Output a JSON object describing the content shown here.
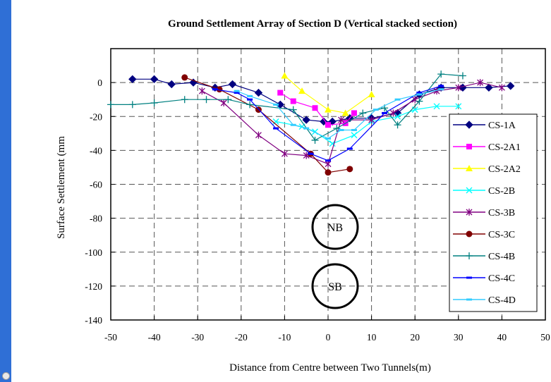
{
  "chart_data": {
    "type": "line",
    "title": "Ground Settlement Array of Section D (Vertical stacked section)",
    "xlabel": "Distance from Centre between Two Tunnels(m)",
    "ylabel": "Surface Settlement (mm",
    "xlim": [
      -50,
      50
    ],
    "ylim": [
      -140,
      20
    ],
    "xticks": [
      "-50",
      "-40",
      "-30",
      "-20",
      "-10",
      "0",
      "10",
      "20",
      "30",
      "40",
      "50"
    ],
    "yticks": [
      "0",
      "-20",
      "-40",
      "-60",
      "-80",
      "-100",
      "-120",
      "-140"
    ],
    "grid": true,
    "legend_position": "right",
    "annotations": [
      "NB",
      "SB"
    ],
    "series": [
      {
        "name": "CS-1A",
        "color": "#000080",
        "marker": "diamond",
        "x": [
          -45,
          -40,
          -36,
          -31,
          -26,
          -22,
          -16,
          -11,
          -5,
          -1,
          1,
          5,
          10,
          16,
          21,
          26,
          31,
          37,
          42
        ],
        "y": [
          2,
          2,
          -1,
          0,
          -3,
          -1,
          -6,
          -13,
          -22,
          -23,
          -23,
          -21,
          -21,
          -18,
          -7,
          -3,
          -3,
          -3,
          -2
        ]
      },
      {
        "name": "CS-2A1",
        "color": "#ff00ff",
        "marker": "square",
        "x": [
          -11,
          -8,
          -3,
          0,
          4,
          6
        ],
        "y": [
          -6,
          -11,
          -15,
          -25,
          -24,
          -18
        ]
      },
      {
        "name": "CS-2A2",
        "color": "#ffff00",
        "marker": "triangle",
        "x": [
          -10,
          -6,
          0,
          4,
          10
        ],
        "y": [
          4,
          -5,
          -16,
          -18,
          -7
        ]
      },
      {
        "name": "CS-2B",
        "color": "#00ffff",
        "marker": "x",
        "x": [
          -12,
          -6,
          -3,
          1,
          6,
          10,
          16,
          20,
          25,
          30
        ],
        "y": [
          -23,
          -26,
          -29,
          -36,
          -31,
          -23,
          -20,
          -16,
          -14,
          -14
        ]
      },
      {
        "name": "CS-3B",
        "color": "#800080",
        "marker": "star",
        "x": [
          -29,
          -24,
          -16,
          -10,
          -5,
          0,
          3,
          10,
          15,
          20,
          25,
          30,
          35,
          40
        ],
        "y": [
          -5,
          -12,
          -31,
          -42,
          -43,
          -48,
          -22,
          -22,
          -18,
          -10,
          -5,
          -3,
          0,
          -3
        ]
      },
      {
        "name": "CS-3C",
        "color": "#800000",
        "marker": "circle",
        "x": [
          -33,
          -25,
          -16,
          -4,
          0,
          5
        ],
        "y": [
          3,
          -4,
          -16,
          -42,
          -53,
          -51
        ]
      },
      {
        "name": "CS-4B",
        "color": "#008080",
        "marker": "plus",
        "x": [
          -50,
          -45,
          -40,
          -33,
          -28,
          -23,
          -18,
          -8,
          -3,
          2,
          8,
          13,
          16,
          21,
          26,
          31
        ],
        "y": [
          -13,
          -13,
          -12,
          -10,
          -10,
          -10,
          -13,
          -16,
          -34,
          -27,
          -18,
          -15,
          -25,
          -11,
          5,
          4
        ]
      },
      {
        "name": "CS-4C",
        "color": "#0000ff",
        "marker": "dash",
        "x": [
          -26,
          -21,
          -18,
          -12,
          -4,
          0,
          5,
          13,
          21,
          26
        ],
        "y": [
          -4,
          -6,
          -10,
          -27,
          -42,
          -46,
          -39,
          -18,
          -6,
          -2
        ]
      },
      {
        "name": "CS-4D",
        "color": "#33ccff",
        "marker": "dash",
        "x": [
          -21,
          -18,
          -12,
          -8,
          -5,
          0,
          3,
          6,
          11,
          16,
          21,
          26
        ],
        "y": [
          -5,
          -8,
          -13,
          -25,
          -27,
          -33,
          -28,
          -28,
          -16,
          -10,
          -7,
          -4
        ]
      }
    ]
  }
}
